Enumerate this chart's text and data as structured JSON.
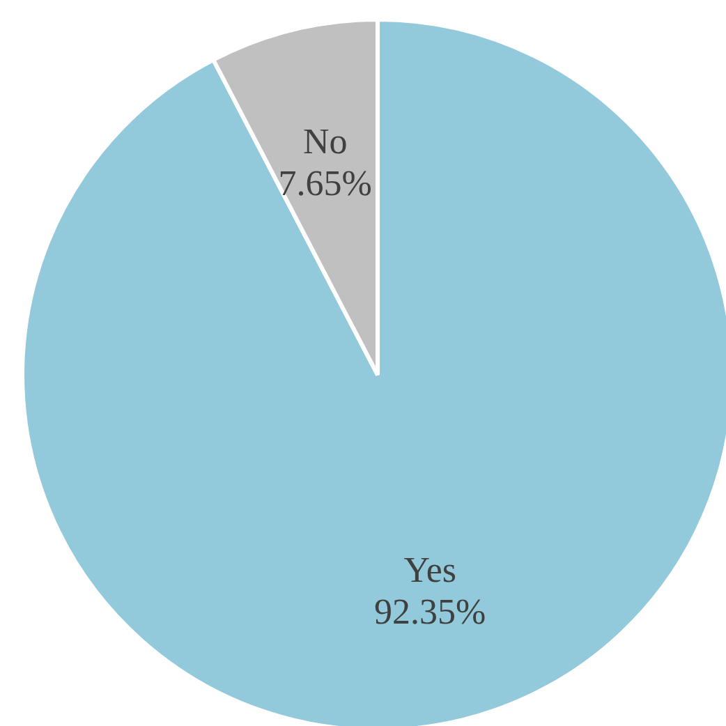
{
  "chart_data": {
    "type": "pie",
    "categories": [
      "Yes",
      "No"
    ],
    "values": [
      92.35,
      7.65
    ],
    "colors": [
      "#92cadb",
      "#c0c0c0"
    ],
    "value_labels": [
      "92.35%",
      "7.65%"
    ],
    "legend": false
  }
}
